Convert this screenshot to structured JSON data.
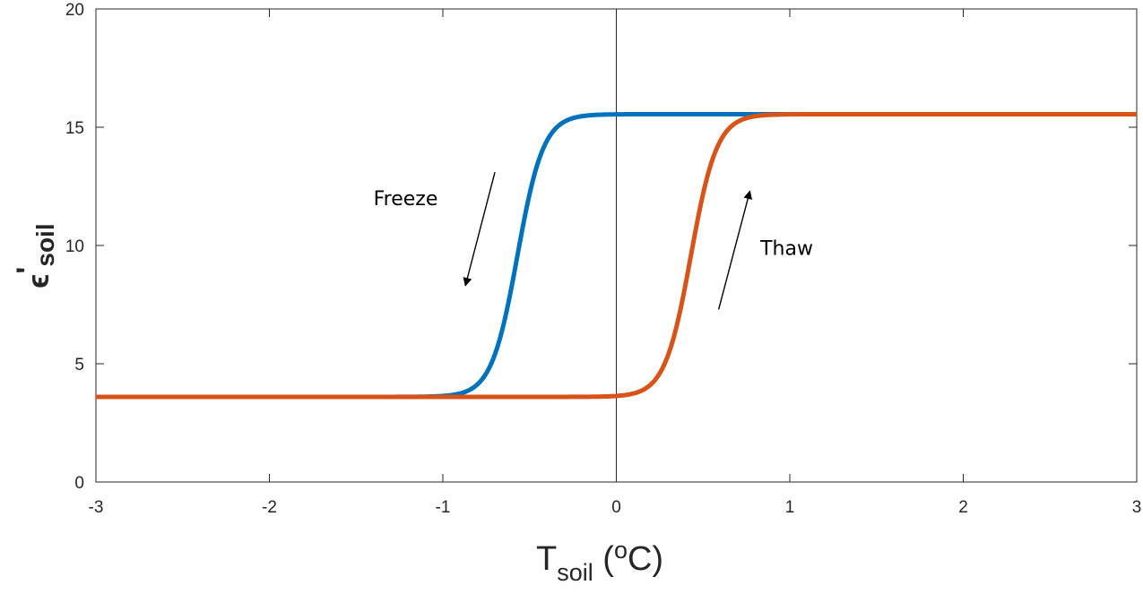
{
  "chart_data": {
    "type": "line",
    "xlabel": {
      "main": "T",
      "sub": "soil",
      "paren_open": " (",
      "sup": "o",
      "unit": "C)"
    },
    "ylabel": {
      "main": "ϵ",
      "prime": "'",
      "sub": "soil"
    },
    "xlim": [
      -3,
      3
    ],
    "ylim": [
      0,
      20
    ],
    "xticks": [
      -3,
      -2,
      -1,
      0,
      1,
      2,
      3
    ],
    "yticks": [
      0,
      5,
      10,
      15,
      20
    ],
    "xtick_labels": [
      "-3",
      "-2",
      "-1",
      "0",
      "1",
      "2",
      "3"
    ],
    "ytick_labels": [
      "0",
      "5",
      "10",
      "15",
      "20"
    ],
    "grid": false,
    "zero_line_x": 0,
    "series": [
      {
        "color": "#0072BD",
        "low": 3.6,
        "high": 15.55,
        "midpoint": -0.57,
        "width": 0.075,
        "x": [
          -3,
          -2,
          -1.2,
          -1.0,
          -0.9,
          -0.8,
          -0.7,
          -0.6,
          -0.5,
          -0.4,
          -0.3,
          -0.2,
          -0.1,
          0,
          1,
          2,
          3
        ],
        "y": [
          3.6,
          3.6,
          3.62,
          3.72,
          3.95,
          4.6,
          6.5,
          8.7,
          12.3,
          14.3,
          15.1,
          15.4,
          15.5,
          15.55,
          15.55,
          15.55,
          15.55
        ]
      },
      {
        "color": "#D95319",
        "low": 3.6,
        "high": 15.55,
        "midpoint": 0.43,
        "width": 0.075,
        "x": [
          -3,
          -2,
          -1,
          -0.5,
          0,
          0.1,
          0.2,
          0.3,
          0.4,
          0.5,
          0.6,
          0.7,
          0.8,
          0.9,
          1,
          2,
          3
        ],
        "y": [
          3.6,
          3.6,
          3.6,
          3.62,
          3.72,
          3.95,
          4.6,
          6.5,
          8.7,
          12.3,
          14.3,
          15.1,
          15.4,
          15.5,
          15.55,
          15.55,
          15.55
        ]
      }
    ],
    "annotations": [
      {
        "text": "Freeze",
        "x": -1.4,
        "y": 11.7
      },
      {
        "text": "Thaw",
        "x": 0.83,
        "y": 9.6
      }
    ],
    "arrows": [
      {
        "name": "freeze-arrow",
        "from": [
          -0.7,
          13.1
        ],
        "to": [
          -0.87,
          8.3
        ]
      },
      {
        "name": "thaw-arrow",
        "from": [
          0.59,
          7.3
        ],
        "to": [
          0.77,
          12.3
        ]
      }
    ]
  }
}
